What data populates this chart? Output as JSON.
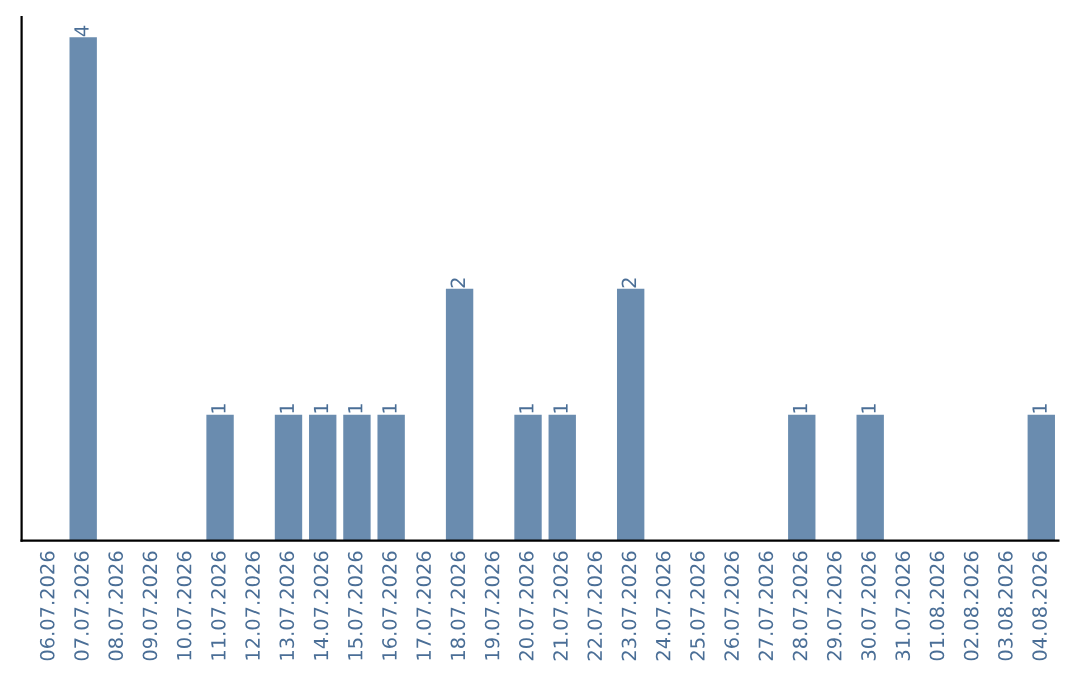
{
  "chart_data": {
    "type": "bar",
    "categories": [
      "06.07.2026",
      "07.07.2026",
      "08.07.2026",
      "09.07.2026",
      "10.07.2026",
      "11.07.2026",
      "12.07.2026",
      "13.07.2026",
      "14.07.2026",
      "15.07.2026",
      "16.07.2026",
      "17.07.2026",
      "18.07.2026",
      "19.07.2026",
      "20.07.2026",
      "21.07.2026",
      "22.07.2026",
      "23.07.2026",
      "24.07.2026",
      "25.07.2026",
      "26.07.2026",
      "27.07.2026",
      "28.07.2026",
      "29.07.2026",
      "30.07.2026",
      "31.07.2026",
      "01.08.2026",
      "02.08.2026",
      "03.08.2026",
      "04.08.2026"
    ],
    "values": [
      0,
      4,
      0,
      0,
      0,
      1,
      0,
      1,
      1,
      1,
      1,
      0,
      2,
      0,
      1,
      1,
      0,
      2,
      0,
      0,
      0,
      0,
      1,
      0,
      1,
      0,
      0,
      0,
      0,
      1
    ],
    "value_labels": [
      null,
      "4",
      null,
      null,
      null,
      "1",
      null,
      "1",
      "1",
      "1",
      "1",
      null,
      "2",
      null,
      "1",
      "1",
      null,
      "2",
      null,
      null,
      null,
      null,
      "1",
      null,
      "1",
      null,
      null,
      null,
      null,
      "1"
    ],
    "color": "#6a8caf",
    "ylim": [
      0,
      4.16
    ],
    "tick_labels": "x",
    "grid": false
  }
}
